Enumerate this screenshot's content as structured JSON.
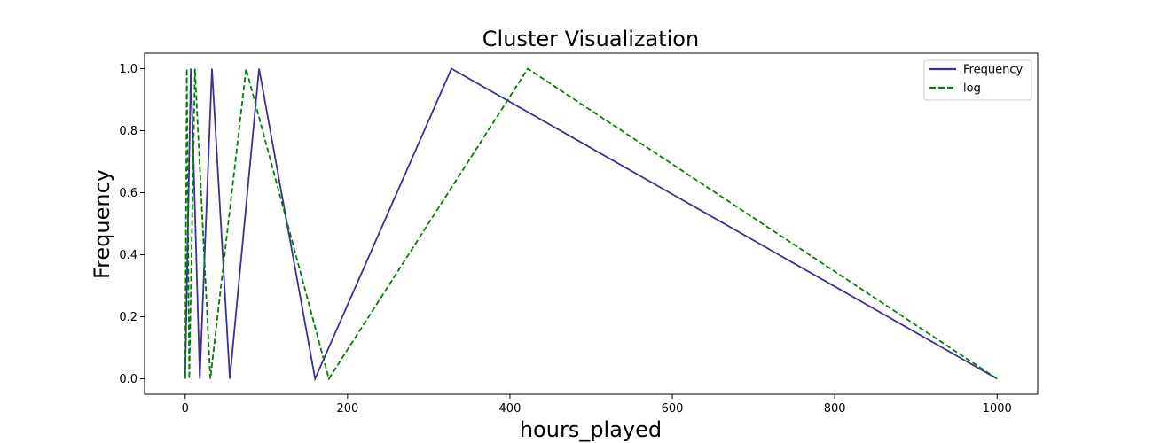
{
  "chart_data": {
    "type": "line",
    "title": "Cluster Visualization",
    "xlabel": "hours_played",
    "ylabel": "Frequency",
    "xlim": [
      -50,
      1050
    ],
    "ylim": [
      -0.05,
      1.05
    ],
    "xticks": [
      0,
      200,
      400,
      600,
      800,
      1000
    ],
    "yticks": [
      0.0,
      0.2,
      0.4,
      0.6,
      0.8,
      1.0
    ],
    "xtick_labels": [
      "0",
      "200",
      "400",
      "600",
      "800",
      "1000"
    ],
    "ytick_labels": [
      "0.0",
      "0.2",
      "0.4",
      "0.6",
      "0.8",
      "1.0"
    ],
    "grid": false,
    "legend_position": "top-right",
    "series": [
      {
        "name": "Frequency",
        "color": "#3b2f9a",
        "style": "solid",
        "x": [
          0,
          7,
          18,
          33,
          55,
          91,
          160,
          328,
          1000
        ],
        "y": [
          0,
          1,
          0,
          1,
          0,
          1,
          0,
          1,
          0
        ]
      },
      {
        "name": "log",
        "color": "#008000",
        "style": "dashed",
        "x": [
          0,
          2,
          5,
          12,
          31,
          75,
          177,
          422,
          1000
        ],
        "y": [
          0,
          1,
          0,
          1,
          0,
          1,
          0,
          1,
          0
        ]
      }
    ]
  }
}
